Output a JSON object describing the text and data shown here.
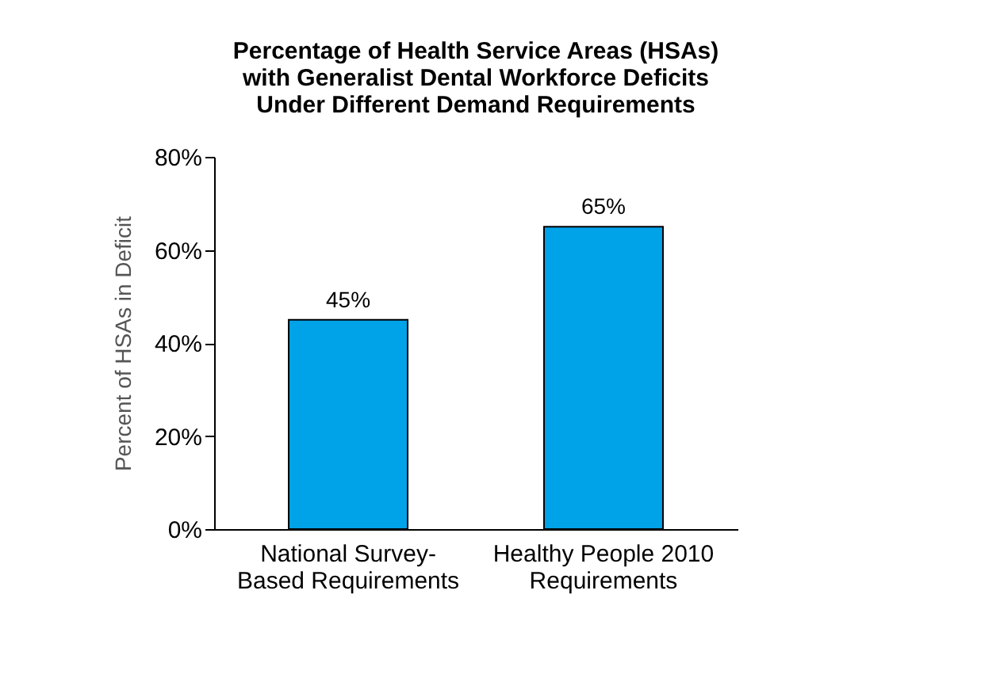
{
  "chart_data": {
    "type": "bar",
    "title": "Percentage of Health Service Areas (HSAs)\nwith Generalist Dental Workforce Deficits\nUnder Different Demand Requirements",
    "ylabel": "Percent of HSAs in Deficit",
    "categories": [
      "National Survey-\nBased Requirements",
      "Healthy People 2010\nRequirements"
    ],
    "values": [
      45,
      65
    ],
    "color": "#00a2e8",
    "value_labels": [
      "45%",
      "65%"
    ],
    "ylim": [
      0,
      80
    ],
    "yticks": [
      {
        "value": 0,
        "label": "0%"
      },
      {
        "value": 20,
        "label": "20%"
      },
      {
        "value": 40,
        "label": "40%"
      },
      {
        "value": 60,
        "label": "60%"
      },
      {
        "value": 80,
        "label": "80%"
      }
    ],
    "grid": false
  }
}
